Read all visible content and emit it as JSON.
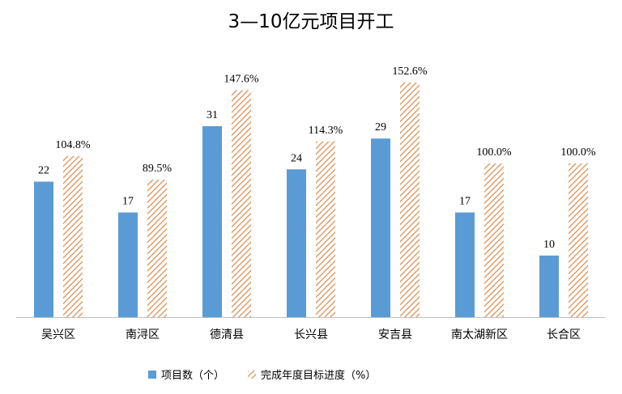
{
  "chart_data": {
    "type": "bar",
    "title": "3—10亿元项目开工",
    "categories": [
      "吴兴区",
      "南浔区",
      "德清县",
      "长兴县",
      "安吉县",
      "南太湖新区",
      "长合区"
    ],
    "series": [
      {
        "name": "项目数（个）",
        "values": [
          22,
          17,
          31,
          24,
          29,
          17,
          10
        ],
        "labels": [
          "22",
          "17",
          "31",
          "24",
          "29",
          "17",
          "10"
        ],
        "color": "#5b9bd5",
        "fill": "solid"
      },
      {
        "name": "完成年度目标进度（%）",
        "values": [
          104.8,
          89.5,
          147.6,
          114.3,
          152.6,
          100.0,
          100.0
        ],
        "labels": [
          "104.8%",
          "89.5%",
          "147.6%",
          "114.3%",
          "152.6%",
          "100.0%",
          "100.0%"
        ],
        "color": "#d9894a",
        "fill": "diagonal-hatch"
      }
    ],
    "axis": {
      "y_visible": false,
      "gridlines": false
    },
    "legend_position": "bottom"
  }
}
